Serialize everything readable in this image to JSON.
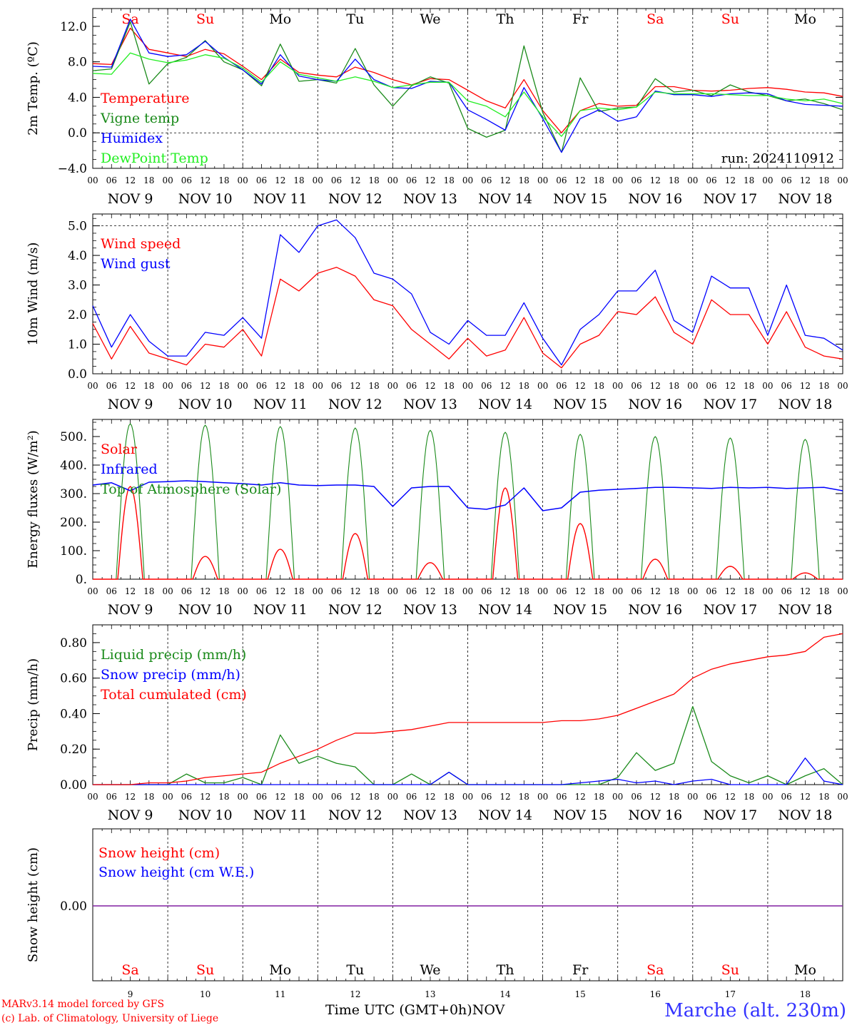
{
  "colors": {
    "red": "#ff0000",
    "green": "#1a8a1a",
    "blue": "#0000ff",
    "lightgreen": "#22ee22",
    "purple": "#8020a0",
    "weekend": "#ff0000",
    "weekday": "#000000"
  },
  "axis": {
    "hour_ticks": [
      "00",
      "06",
      "12",
      "18",
      "00",
      "06",
      "12",
      "18",
      "00",
      "06",
      "12",
      "18",
      "00",
      "06",
      "12",
      "18",
      "00",
      "06",
      "12",
      "18",
      "00",
      "06",
      "12",
      "18",
      "00",
      "06",
      "12",
      "18",
      "00",
      "06",
      "12",
      "18",
      "00",
      "06",
      "12",
      "18",
      "00",
      "06",
      "12",
      "18",
      "00"
    ],
    "date_labels": [
      "NOV  9",
      "NOV 10",
      "NOV 11",
      "NOV 12",
      "NOV 13",
      "NOV 14",
      "NOV 15",
      "NOV 16",
      "NOV 17",
      "NOV 18"
    ],
    "weekdays": [
      "Sa",
      "Su",
      "Mo",
      "Tu",
      "We",
      "Th",
      "Fr",
      "Sa",
      "Su",
      "Mo"
    ],
    "weekend_flags": [
      true,
      true,
      false,
      false,
      false,
      false,
      false,
      true,
      true,
      false
    ],
    "bottom_day_numbers": [
      "9",
      "10",
      "11",
      "12",
      "13",
      "14",
      "15",
      "16",
      "17",
      "18"
    ],
    "xlabel": "Time UTC (GMT+0h)",
    "xunit": "NOV"
  },
  "footer": {
    "model": "MARv3.14 model forced by GFS",
    "credit": "(c) Lab. of Climatology, University of Liege",
    "station": "Marche (alt. 230m)"
  },
  "chart_data": [
    {
      "type": "line",
      "ylabel": "2m Temp. (ºC)",
      "ylim": [
        -4,
        14
      ],
      "ytick_values": [
        -4,
        0,
        4,
        8,
        12
      ],
      "ytick_labels": [
        "−4.0",
        "0.0",
        "4.0",
        "8.0",
        "12.0"
      ],
      "annotation": "run: 2024110912",
      "x_hours": [
        0,
        6,
        12,
        18,
        24,
        30,
        36,
        42,
        48,
        54,
        60,
        66,
        72,
        78,
        84,
        90,
        96,
        102,
        108,
        114,
        120,
        126,
        132,
        138,
        144,
        150,
        156,
        162,
        168,
        174,
        180,
        186,
        192,
        198,
        204,
        210,
        216,
        222,
        228,
        234,
        240
      ],
      "series": [
        {
          "name": "Temperature",
          "color": "red",
          "values": [
            7.8,
            7.7,
            11.8,
            9.4,
            9.0,
            8.6,
            9.4,
            8.9,
            7.5,
            6.0,
            8.3,
            6.8,
            6.5,
            6.3,
            7.4,
            6.8,
            6.0,
            5.4,
            6.1,
            6.0,
            4.8,
            3.6,
            2.8,
            6.0,
            2.5,
            0.0,
            2.5,
            3.3,
            3.0,
            3.1,
            5.2,
            5.2,
            4.8,
            4.7,
            4.8,
            5.0,
            5.1,
            4.9,
            4.6,
            4.5,
            4.1
          ]
        },
        {
          "name": "Vigne temp",
          "color": "green",
          "values": [
            7.0,
            7.2,
            12.5,
            5.5,
            7.8,
            8.5,
            10.4,
            8.0,
            7.1,
            5.3,
            10.0,
            5.8,
            6.0,
            5.6,
            9.5,
            5.4,
            3.0,
            5.3,
            6.3,
            5.6,
            0.5,
            -0.5,
            0.3,
            9.8,
            2.3,
            -2.2,
            6.2,
            2.4,
            2.8,
            2.9,
            6.1,
            4.6,
            4.8,
            4.2,
            5.4,
            4.6,
            4.2,
            3.6,
            3.8,
            3.3,
            2.6
          ]
        },
        {
          "name": "Humidex",
          "color": "blue",
          "values": [
            7.5,
            7.4,
            12.8,
            9.0,
            8.6,
            8.8,
            10.3,
            8.5,
            7.1,
            5.5,
            8.8,
            6.4,
            6.0,
            5.8,
            8.3,
            6.0,
            5.1,
            5.0,
            5.8,
            5.7,
            2.6,
            1.5,
            0.3,
            5.1,
            1.6,
            -2.2,
            1.6,
            2.6,
            1.3,
            1.8,
            4.7,
            4.3,
            4.3,
            4.1,
            4.4,
            4.5,
            4.4,
            3.6,
            3.2,
            3.1,
            3.0
          ]
        },
        {
          "name": "DewPoint Temp",
          "color": "lightgreen",
          "values": [
            6.7,
            6.6,
            9.0,
            8.3,
            7.9,
            8.2,
            8.8,
            8.4,
            7.3,
            5.7,
            8.0,
            6.6,
            6.2,
            5.8,
            6.3,
            5.8,
            5.1,
            5.4,
            5.7,
            5.7,
            3.6,
            3.0,
            1.8,
            4.6,
            1.8,
            -0.4,
            2.5,
            2.8,
            2.6,
            2.9,
            4.6,
            4.4,
            4.4,
            4.4,
            4.3,
            4.2,
            4.2,
            3.8,
            3.6,
            3.8,
            3.3
          ]
        }
      ]
    },
    {
      "type": "line",
      "ylabel": "10m Wind (m/s)",
      "ylim": [
        0,
        5.4
      ],
      "ytick_values": [
        0,
        1,
        2,
        3,
        4,
        5
      ],
      "ytick_labels": [
        "0.0",
        "1.0",
        "2.0",
        "3.0",
        "4.0",
        "5.0"
      ],
      "dashed_reference": 5.0,
      "x_hours": [
        0,
        6,
        12,
        18,
        24,
        30,
        36,
        42,
        48,
        54,
        60,
        66,
        72,
        78,
        84,
        90,
        96,
        102,
        108,
        114,
        120,
        126,
        132,
        138,
        144,
        150,
        156,
        162,
        168,
        174,
        180,
        186,
        192,
        198,
        204,
        210,
        216,
        222,
        228,
        234,
        240
      ],
      "series": [
        {
          "name": "Wind speed",
          "color": "red",
          "values": [
            1.7,
            0.5,
            1.6,
            0.7,
            0.5,
            0.3,
            1.0,
            0.9,
            1.5,
            0.6,
            3.2,
            2.8,
            3.4,
            3.6,
            3.3,
            2.5,
            2.3,
            1.5,
            1.0,
            0.5,
            1.2,
            0.6,
            0.8,
            1.9,
            0.7,
            0.2,
            1.0,
            1.3,
            2.1,
            2.0,
            2.6,
            1.4,
            1.0,
            2.5,
            2.0,
            2.0,
            1.0,
            2.1,
            0.9,
            0.6,
            0.5
          ]
        },
        {
          "name": "Wind gust",
          "color": "blue",
          "values": [
            2.3,
            0.9,
            2.0,
            1.1,
            0.6,
            0.6,
            1.4,
            1.3,
            1.9,
            1.2,
            4.7,
            4.1,
            5.0,
            5.2,
            4.6,
            3.4,
            3.2,
            2.7,
            1.4,
            1.0,
            1.8,
            1.3,
            1.3,
            2.4,
            1.2,
            0.3,
            1.5,
            2.0,
            2.8,
            2.8,
            3.5,
            1.8,
            1.4,
            3.3,
            2.9,
            2.9,
            1.3,
            3.0,
            1.3,
            1.2,
            0.8
          ]
        }
      ]
    },
    {
      "type": "line",
      "ylabel": "Energy fluxes (W/m²)",
      "ylim": [
        0,
        560
      ],
      "ytick_values": [
        0,
        100,
        200,
        300,
        400,
        500
      ],
      "ytick_labels": [
        "0.",
        "100.",
        "200.",
        "300.",
        "400.",
        "500."
      ],
      "daily_peak_days": [
        0,
        1,
        2,
        3,
        4,
        5,
        6,
        7,
        8,
        9
      ],
      "series": [
        {
          "name": "Solar",
          "color": "red",
          "daily_peaks": [
            325,
            80,
            105,
            160,
            58,
            320,
            195,
            70,
            45,
            22
          ]
        },
        {
          "name": "Infrared",
          "color": "blue",
          "x_hours": [
            0,
            6,
            12,
            18,
            24,
            30,
            36,
            42,
            48,
            54,
            60,
            66,
            72,
            78,
            84,
            90,
            96,
            102,
            108,
            114,
            120,
            126,
            132,
            138,
            144,
            150,
            156,
            162,
            168,
            174,
            180,
            186,
            192,
            198,
            204,
            210,
            216,
            222,
            228,
            234,
            240
          ],
          "values": [
            330,
            338,
            310,
            340,
            342,
            345,
            342,
            338,
            335,
            330,
            338,
            330,
            328,
            330,
            330,
            325,
            255,
            320,
            325,
            325,
            250,
            245,
            260,
            320,
            240,
            250,
            305,
            312,
            315,
            318,
            322,
            322,
            320,
            318,
            322,
            320,
            322,
            318,
            320,
            322,
            310
          ]
        },
        {
          "name": "Top of Atmosphere (Solar)",
          "color": "green",
          "daily_peaks": [
            545,
            540,
            535,
            530,
            522,
            515,
            508,
            500,
            495,
            490
          ]
        }
      ]
    },
    {
      "type": "line",
      "ylabel": "Precip (mm/h)",
      "ylim": [
        0,
        0.9
      ],
      "ytick_values": [
        0,
        0.2,
        0.4,
        0.6,
        0.8
      ],
      "ytick_labels": [
        "0.00",
        "0.20",
        "0.40",
        "0.60",
        "0.80"
      ],
      "x_hours": [
        0,
        6,
        12,
        18,
        24,
        30,
        36,
        42,
        48,
        54,
        60,
        66,
        72,
        78,
        84,
        90,
        96,
        102,
        108,
        114,
        120,
        126,
        132,
        138,
        144,
        150,
        156,
        162,
        168,
        174,
        180,
        186,
        192,
        198,
        204,
        210,
        216,
        222,
        228,
        234,
        240
      ],
      "series": [
        {
          "name": "Liquid precip (mm/h)",
          "color": "green",
          "values": [
            0,
            0,
            0,
            0,
            0,
            0.06,
            0.01,
            0.01,
            0.04,
            0,
            0.28,
            0.12,
            0.16,
            0.12,
            0.1,
            0,
            0,
            0.06,
            0,
            0.07,
            0,
            0,
            0,
            0,
            0,
            0,
            0,
            0,
            0.04,
            0.18,
            0.08,
            0.12,
            0.44,
            0.13,
            0.05,
            0.01,
            0.05,
            0,
            0.05,
            0.09,
            0
          ]
        },
        {
          "name": "Snow precip (mm/h)",
          "color": "blue",
          "values": [
            0,
            0,
            0,
            0,
            0,
            0,
            0,
            0,
            0,
            0,
            0,
            0,
            0,
            0,
            0,
            0,
            0,
            0,
            0,
            0.07,
            0,
            0,
            0,
            0,
            0,
            0,
            0.01,
            0.02,
            0.03,
            0.01,
            0.02,
            0,
            0.02,
            0.03,
            0,
            0,
            0,
            0,
            0.15,
            0.02,
            0
          ]
        },
        {
          "name": "Total cumulated (cm)",
          "color": "red",
          "values": [
            0,
            0,
            0,
            0.01,
            0.01,
            0.02,
            0.04,
            0.05,
            0.06,
            0.07,
            0.12,
            0.16,
            0.2,
            0.25,
            0.29,
            0.29,
            0.3,
            0.31,
            0.33,
            0.35,
            0.35,
            0.35,
            0.35,
            0.35,
            0.35,
            0.36,
            0.36,
            0.37,
            0.39,
            0.43,
            0.47,
            0.51,
            0.6,
            0.65,
            0.68,
            0.7,
            0.72,
            0.73,
            0.75,
            0.83,
            0.85
          ]
        }
      ]
    },
    {
      "type": "line",
      "ylabel": "Snow height (cm)",
      "ytick_values": [
        0
      ],
      "ytick_labels": [
        "0.00"
      ],
      "series": [
        {
          "name": "Snow height (cm)",
          "color": "red",
          "values": [
            0,
            0
          ]
        },
        {
          "name": "Snow height (cm W.E.)",
          "color": "blue",
          "values": [
            0,
            0
          ]
        }
      ]
    }
  ]
}
